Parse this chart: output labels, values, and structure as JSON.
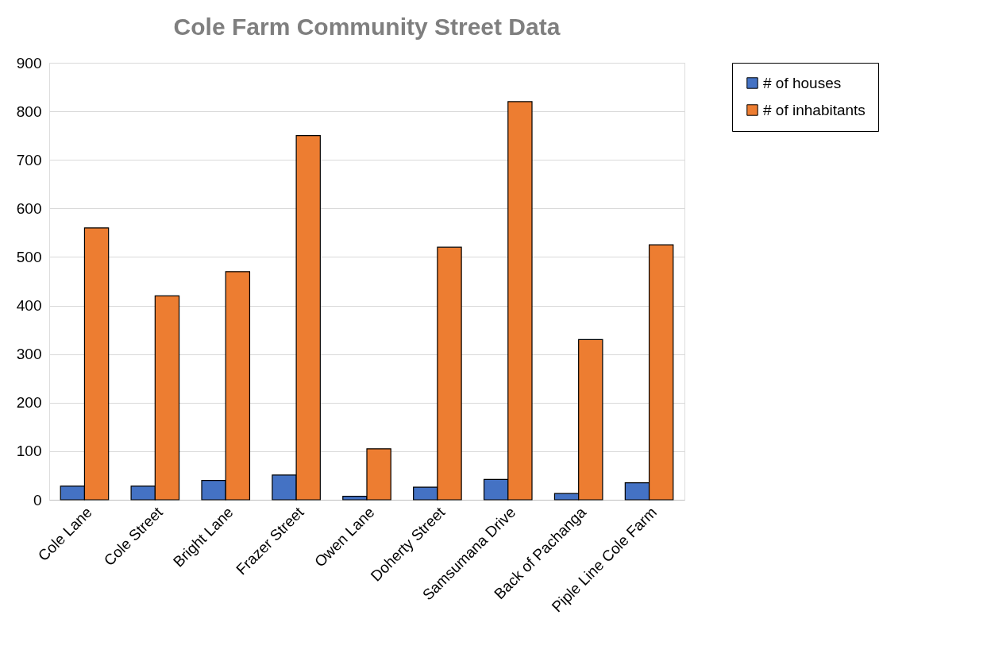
{
  "chart_data": {
    "type": "bar",
    "title": "Cole Farm Community Street Data",
    "categories": [
      "Cole Lane",
      "Cole Street",
      "Bright Lane",
      "Frazer Street",
      "Owen Lane",
      "Doherty Street",
      "Samsumana Drive",
      "Back of Pachanga",
      "Piple Line Cole Farm"
    ],
    "series": [
      {
        "name": "# of houses",
        "color": "#4472c4",
        "values": [
          28,
          28,
          40,
          51,
          7,
          26,
          42,
          13,
          35
        ]
      },
      {
        "name": "# of inhabitants",
        "color": "#ed7d31",
        "values": [
          560,
          420,
          470,
          750,
          105,
          520,
          820,
          330,
          525
        ]
      }
    ],
    "ylim": [
      0,
      900
    ],
    "yticks": [
      0,
      100,
      200,
      300,
      400,
      500,
      600,
      700,
      800,
      900
    ],
    "grid": "y",
    "legend": "right"
  }
}
